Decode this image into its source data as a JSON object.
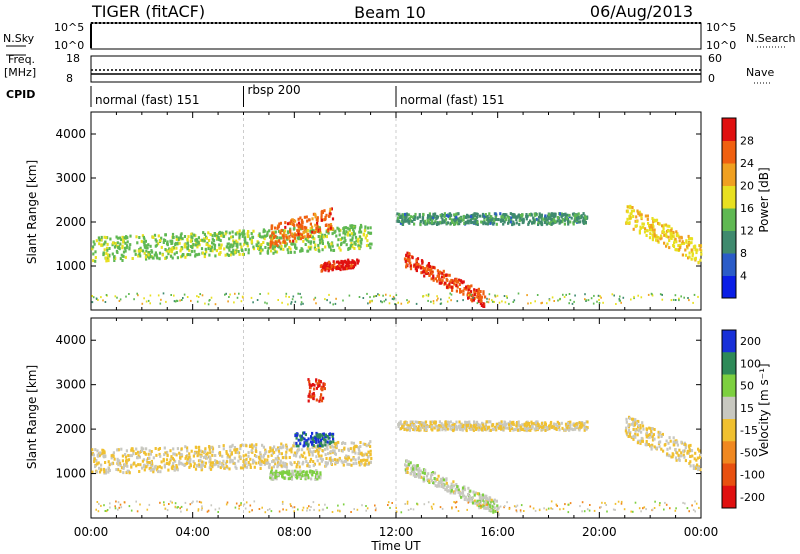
{
  "header": {
    "radar": "TIGER (fitACF)",
    "beam": "Beam 10",
    "date": "06/Aug/2013"
  },
  "params": {
    "nsky_label": "N.Sky",
    "nsky_ticks": [
      "10^5",
      "10^0"
    ],
    "nsearch_label": "N.Search",
    "nsearch_ticks": [
      "10^5",
      "10^0"
    ],
    "freq_label_line1": "Freq.",
    "freq_label_line2": "[MHz]",
    "freq_ticks": [
      "18",
      "8"
    ],
    "nave_label": "Nave",
    "nave_ticks": [
      "60",
      "0"
    ],
    "cpid_label": "CPID"
  },
  "cpid_segments": [
    {
      "label": "normal (fast) 151",
      "start_h": 0.0,
      "end_h": 6.0
    },
    {
      "label": "rbsp 200",
      "start_h": 6.0,
      "end_h": 12.0
    },
    {
      "label": "normal (fast) 151",
      "start_h": 12.0,
      "end_h": 24.0
    }
  ],
  "axes": {
    "ylabel": "Slant Range [km]",
    "yticks": [
      "1000",
      "2000",
      "3000",
      "4000"
    ],
    "xticks": [
      "00:00",
      "04:00",
      "08:00",
      "12:00",
      "16:00",
      "20:00",
      "00:00"
    ],
    "xlabel": "Time UT"
  },
  "power_colorbar": {
    "label": "Power [dB]",
    "ticks": [
      "4",
      "8",
      "12",
      "16",
      "20",
      "24",
      "28"
    ],
    "colors": [
      "#0a1ee6",
      "#2b5cc8",
      "#3f8a6e",
      "#5fb852",
      "#e8e020",
      "#f0a020",
      "#f06010",
      "#e01010"
    ]
  },
  "velocity_colorbar": {
    "label": "Velocity [m s⁻¹]",
    "ticks": [
      "200",
      "100",
      "50",
      "15",
      "-15",
      "-50",
      "-100",
      "-200"
    ],
    "colors": [
      "#1830d8",
      "#2e8a58",
      "#7dd040",
      "#c8c8c0",
      "#f0c030",
      "#f08820",
      "#e85010",
      "#e01010"
    ]
  },
  "chart_data": [
    {
      "type": "heatmap",
      "panel": "power",
      "x_units": "hours UT",
      "xlim": [
        0,
        24
      ],
      "ylim": [
        0,
        4500
      ],
      "colorbar_range": [
        0,
        30
      ],
      "features": [
        {
          "name": "main band",
          "x": [
            0.0,
            11.0
          ],
          "y_center": [
            1400,
            1700
          ],
          "width": 550,
          "value": 14
        },
        {
          "name": "arc 07-09h",
          "x": [
            7.0,
            9.5
          ],
          "y_center": [
            1700,
            2100
          ],
          "width": 500,
          "value": 24
        },
        {
          "name": "core 09-10h",
          "x": [
            9.0,
            10.5
          ],
          "y_center": [
            1000,
            1100
          ],
          "width": 200,
          "value": 28
        },
        {
          "name": "near-noon arc",
          "x": [
            12.3,
            15.5
          ],
          "y_center": [
            1200,
            250
          ],
          "width": 350,
          "value": 26
        },
        {
          "name": "upper band",
          "x": [
            12.0,
            19.5
          ],
          "y_center": [
            2100,
            2100
          ],
          "width": 250,
          "value": 10
        },
        {
          "name": "evening arc",
          "x": [
            21.0,
            24.0
          ],
          "y_center": [
            2200,
            1300
          ],
          "width": 500,
          "value": 18
        }
      ]
    },
    {
      "type": "heatmap",
      "panel": "velocity",
      "x_units": "hours UT",
      "xlim": [
        0,
        24
      ],
      "ylim": [
        0,
        4500
      ],
      "colorbar_range": [
        -200,
        200
      ],
      "features": [
        {
          "name": "ground scatter band",
          "x": [
            0.0,
            11.0
          ],
          "y_center": [
            1300,
            1500
          ],
          "width": 550,
          "value": 0
        },
        {
          "name": "positive patch",
          "x": [
            8.0,
            9.5
          ],
          "y_center": [
            1800,
            1800
          ],
          "width": 300,
          "value": 150
        },
        {
          "name": "green patch",
          "x": [
            7.0,
            9.0
          ],
          "y_center": [
            1000,
            1000
          ],
          "width": 200,
          "value": 60
        },
        {
          "name": "negative patch",
          "x": [
            8.5,
            9.2
          ],
          "y_center": [
            2900,
            2900
          ],
          "width": 500,
          "value": -150
        },
        {
          "name": "noon arc",
          "x": [
            12.3,
            16.0
          ],
          "y_center": [
            1200,
            250
          ],
          "width": 300,
          "value": 30
        },
        {
          "name": "upper band",
          "x": [
            12.0,
            19.5
          ],
          "y_center": [
            2100,
            2100
          ],
          "width": 200,
          "value": 0
        },
        {
          "name": "evening arc",
          "x": [
            21.0,
            24.0
          ],
          "y_center": [
            2100,
            1300
          ],
          "width": 500,
          "value": 0
        }
      ]
    }
  ]
}
